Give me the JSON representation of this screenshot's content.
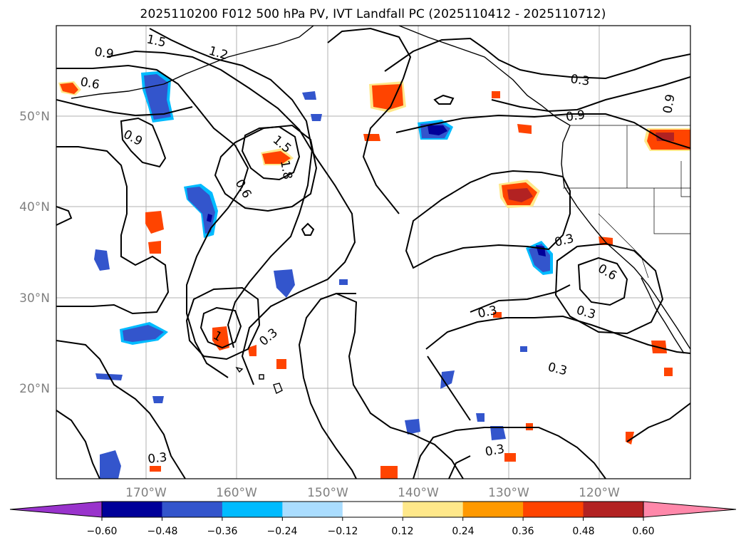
{
  "title": "2025110200 F012 500 hPa PV, IVT Landfall PC (2025110412 - 2025110712)",
  "lat_labels": [
    "50°N",
    "40°N",
    "30°N",
    "20°N"
  ],
  "lon_labels": [
    "170°W",
    "160°W",
    "150°W",
    "140°W",
    "130°W",
    "120°W"
  ],
  "contour_labels": [
    "1.5",
    "1.2",
    "0.9",
    "0.6",
    "0.9",
    "1.5",
    "1.8",
    "0.6",
    "0.3",
    "0.9",
    "0.9",
    "0.3",
    "0.3",
    "0.6",
    "0.3",
    "0.3",
    "0.3",
    "0.3",
    "0.3",
    "1"
  ],
  "colorbar": {
    "tick_labels": [
      "−0.60",
      "−0.48",
      "−0.36",
      "−0.24",
      "−0.12",
      "0.12",
      "0.24",
      "0.36",
      "0.48",
      "0.60"
    ],
    "colors": [
      "#9933cc",
      "#000099",
      "#3355cc",
      "#00bbff",
      "#aaddff",
      "#ffffff",
      "#ffe88a",
      "#ff9900",
      "#ff4400",
      "#b22222",
      "#ff88aa"
    ]
  },
  "palette": {
    "blue_dark": "#000099",
    "blue_mid": "#3355cc",
    "blue_light": "#00bbff",
    "orange": "#ff4400",
    "yellow": "#ffe88a",
    "red_dark": "#b22222"
  }
}
